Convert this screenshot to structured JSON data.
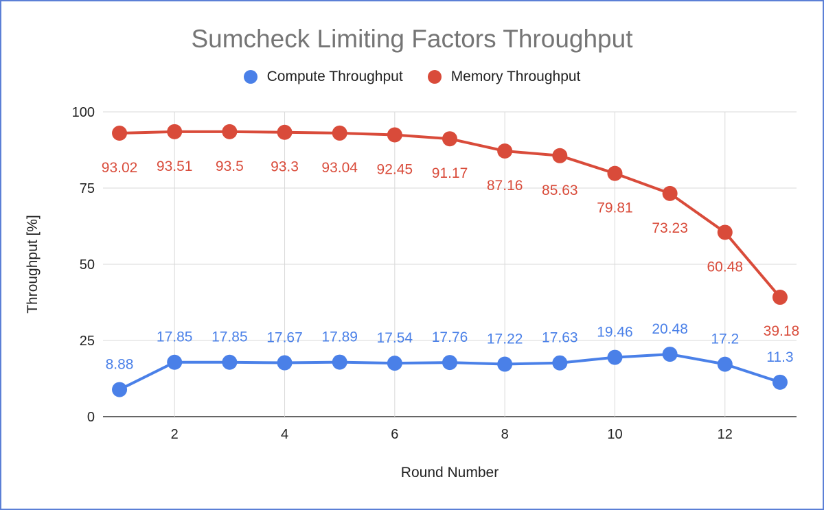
{
  "chart_data": {
    "type": "line",
    "title": "Sumcheck Limiting Factors Throughput",
    "xlabel": "Round Number",
    "ylabel": "Throughput [%]",
    "x": [
      1,
      2,
      3,
      4,
      5,
      6,
      7,
      8,
      9,
      10,
      11,
      12,
      13
    ],
    "xlim": [
      0.7,
      13.3
    ],
    "ylim": [
      0,
      100
    ],
    "xticks": [
      "2",
      "4",
      "6",
      "8",
      "10",
      "12"
    ],
    "yticks": [
      "0",
      "25",
      "50",
      "75",
      "100"
    ],
    "grid": true,
    "legend_position": "top",
    "series": [
      {
        "name": "Compute Throughput",
        "color": "#4a80e8",
        "values": [
          8.88,
          17.85,
          17.85,
          17.67,
          17.89,
          17.54,
          17.76,
          17.22,
          17.63,
          19.46,
          20.48,
          17.2,
          11.3
        ],
        "labels": [
          "8.88",
          "17.85",
          "17.85",
          "17.67",
          "17.89",
          "17.54",
          "17.76",
          "17.22",
          "17.63",
          "19.46",
          "20.48",
          "17.2",
          "11.3"
        ]
      },
      {
        "name": "Memory Throughput",
        "color": "#d94b3a",
        "values": [
          93.02,
          93.51,
          93.5,
          93.3,
          93.04,
          92.45,
          91.17,
          87.16,
          85.63,
          79.81,
          73.23,
          60.48,
          39.18
        ],
        "labels": [
          "93.02",
          "93.51",
          "93.5",
          "93.3",
          "93.04",
          "92.45",
          "91.17",
          "87.16",
          "85.63",
          "79.81",
          "73.23",
          "60.48",
          "39.18"
        ]
      }
    ]
  }
}
